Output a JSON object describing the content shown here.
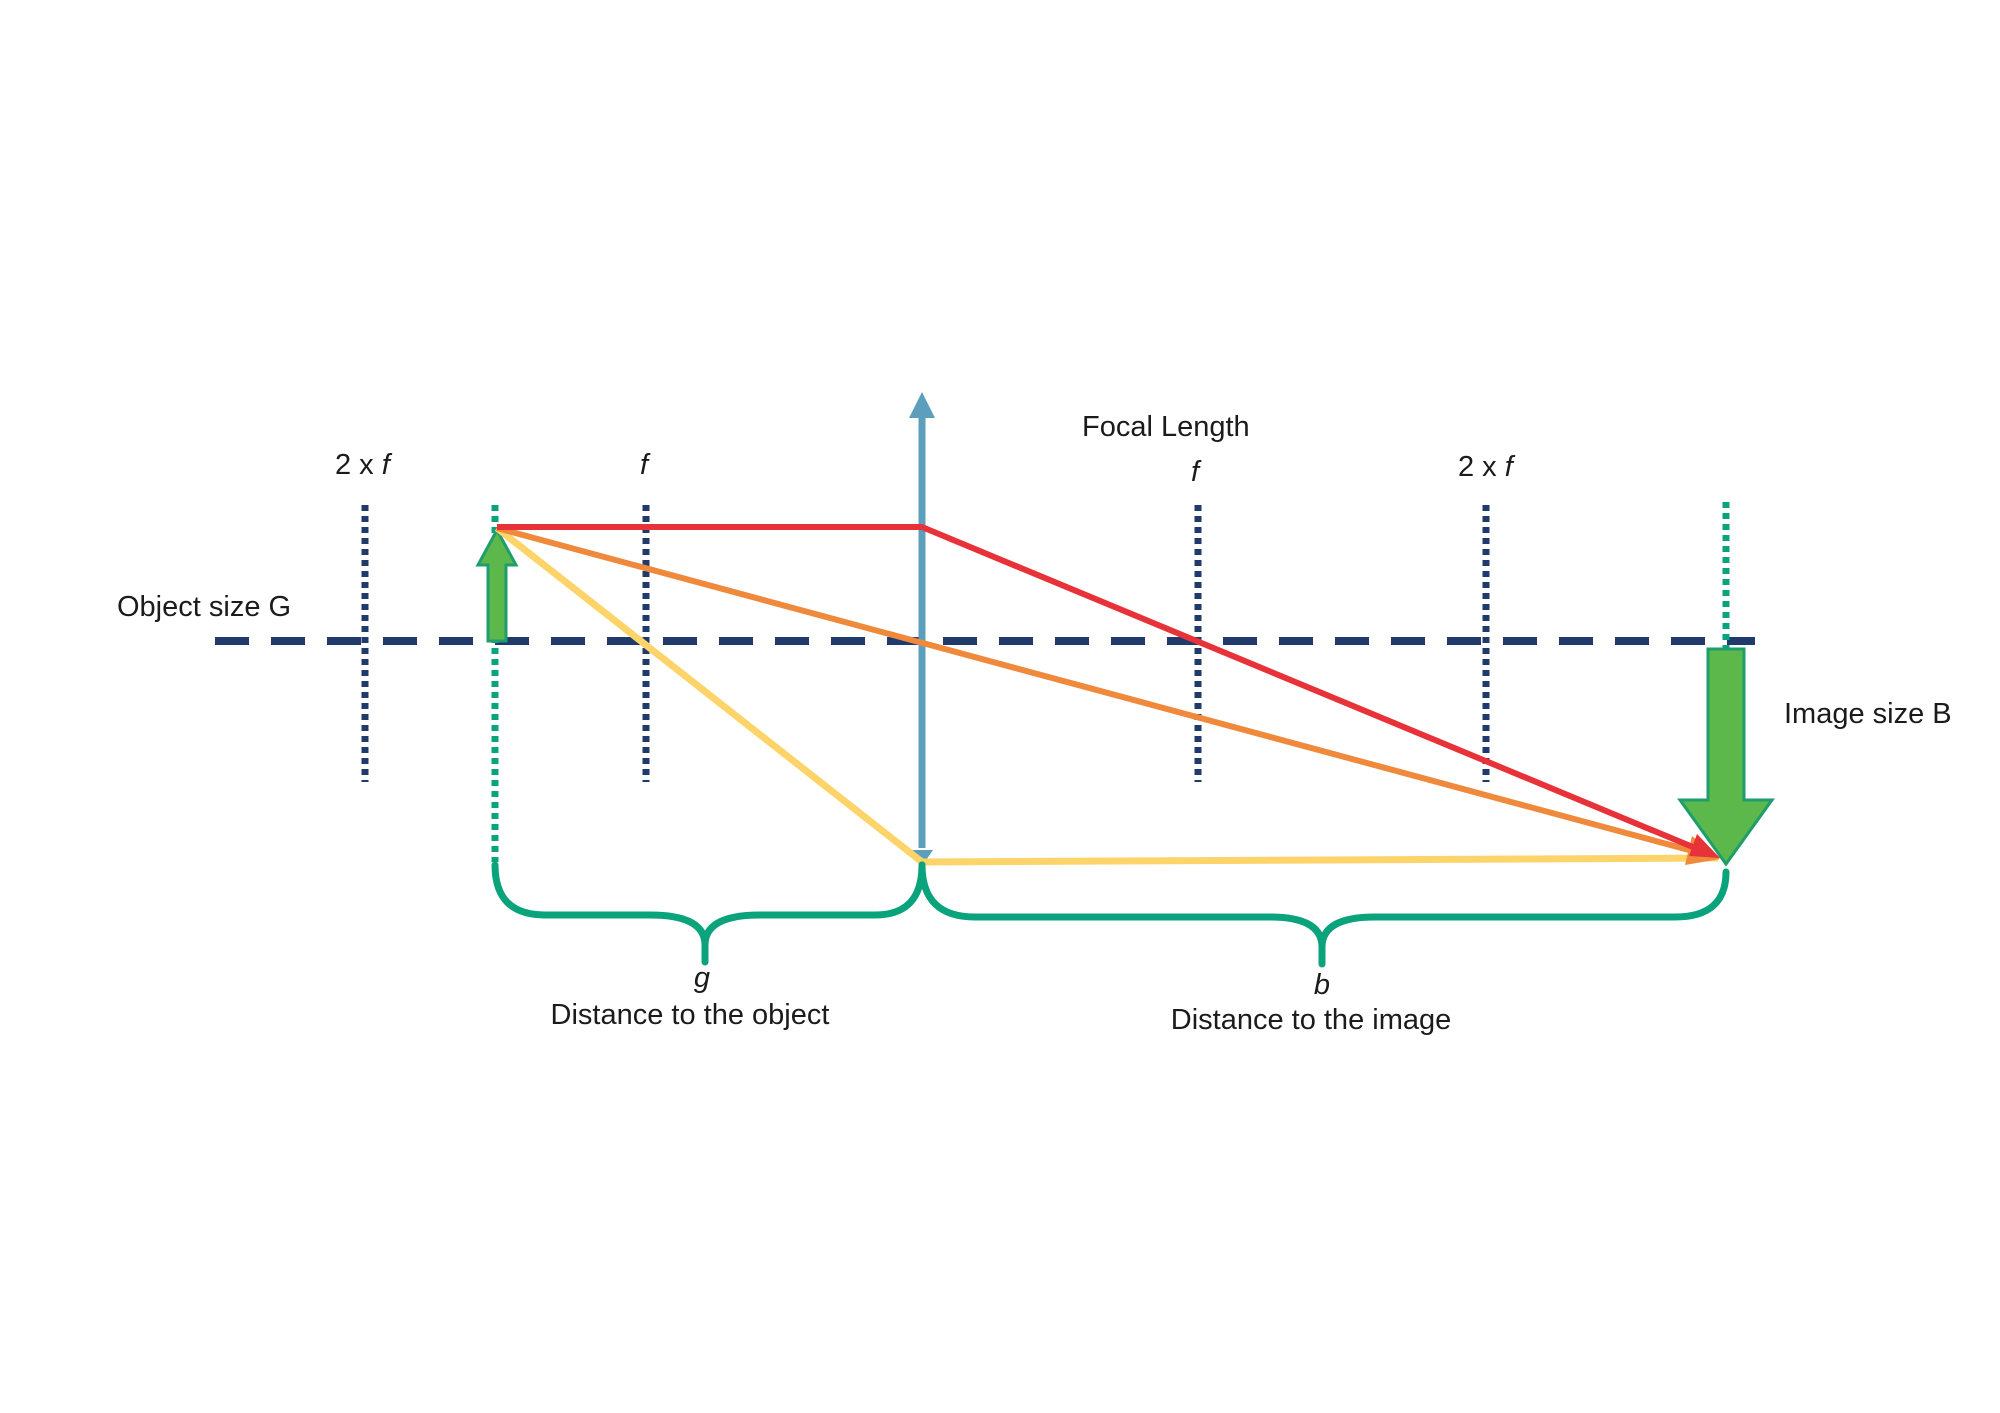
{
  "labels": {
    "focal_length": "Focal Length",
    "left_2f_prefix": "2 x ",
    "left_2f_var": "f",
    "left_f": "f",
    "right_f": "f",
    "right_2f_prefix": "2 x ",
    "right_2f_var": "f",
    "object_size": "Object size G",
    "image_size": "Image size B",
    "g_symbol": "g",
    "g_caption": "Distance to the object",
    "b_symbol": "b",
    "b_caption": "Distance to the image"
  },
  "colors": {
    "optical_axis": "#1f3a6b",
    "focal_markers": "#1f3a6b",
    "lens": "#5b9fbd",
    "ray_parallel": "#e8323a",
    "ray_central": "#ef8a3c",
    "ray_focal": "#fcd469",
    "object_arrow": "#5cb84a",
    "image_arrow": "#5cb84a",
    "arrow_outline": "#1e9e6d",
    "bracket": "#0aa37b"
  }
}
